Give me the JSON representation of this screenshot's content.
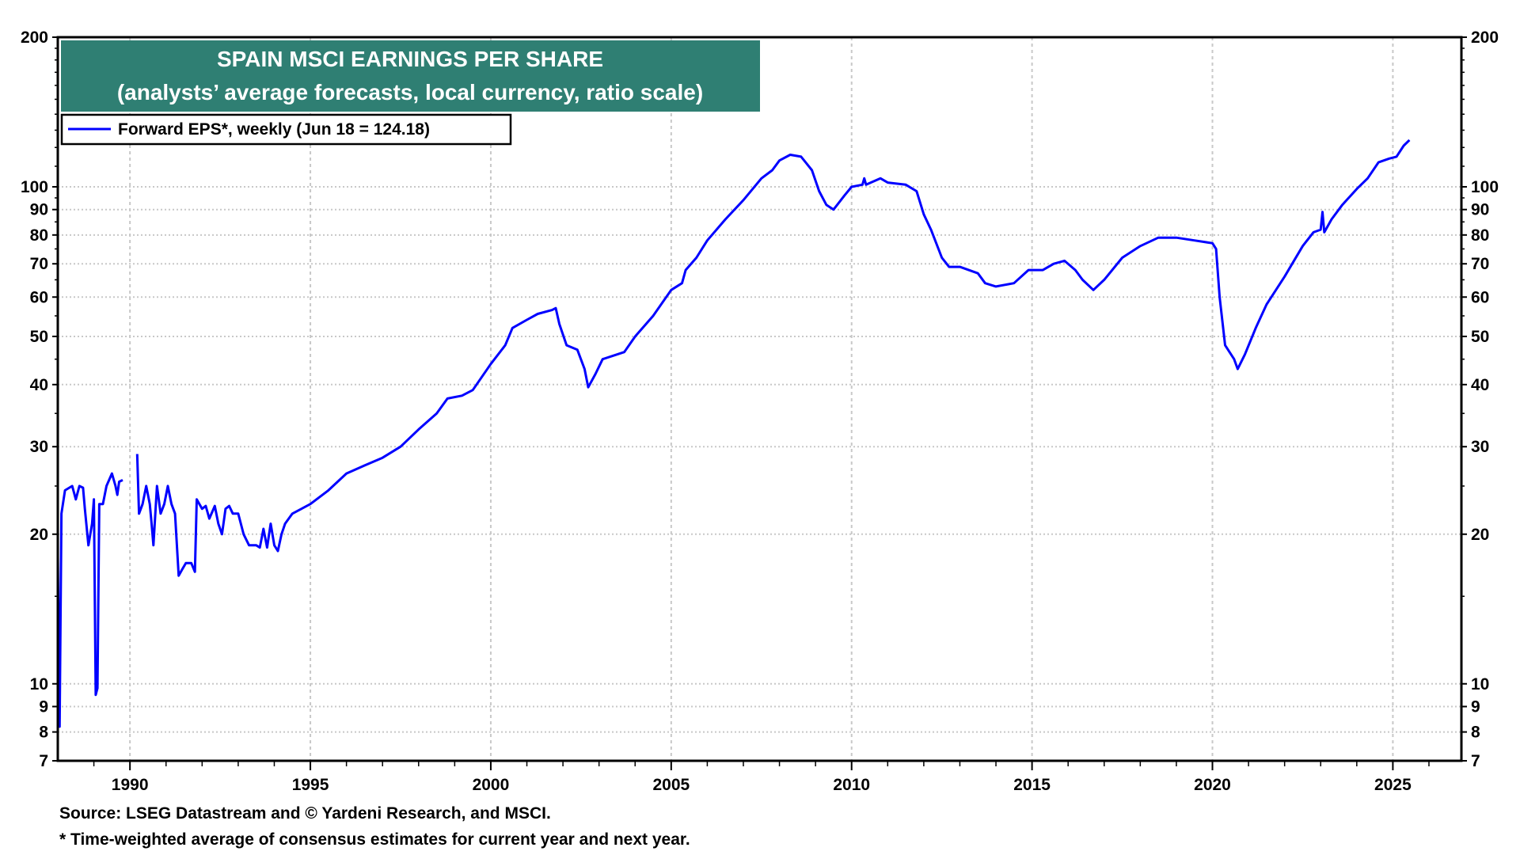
{
  "chart_data": {
    "type": "line",
    "title": "SPAIN MSCI EARNINGS PER SHARE",
    "subtitle": "(analysts’ average forecasts, local currency, ratio scale)",
    "legend": [
      {
        "label": "Forward EPS*, weekly (Jun 18 = 124.18)",
        "color": "#0000ff"
      }
    ],
    "legend_placement": "top-left",
    "yscale": "log",
    "ylim": [
      7,
      200
    ],
    "xlim": [
      1988.0,
      2026.9
    ],
    "yticks": [
      7,
      8,
      9,
      10,
      20,
      30,
      40,
      50,
      60,
      70,
      80,
      90,
      100,
      200
    ],
    "ytick_labels": [
      "7",
      "8",
      "9",
      "10",
      "20",
      "30",
      "40",
      "50",
      "60",
      "70",
      "80",
      "90",
      "100",
      "200"
    ],
    "xticks": [
      1990,
      1995,
      2000,
      2005,
      2010,
      2015,
      2020,
      2025
    ],
    "xtick_labels": [
      "1990",
      "1995",
      "2000",
      "2005",
      "2010",
      "2015",
      "2020",
      "2025"
    ],
    "grid": true,
    "series": [
      {
        "name": "Forward EPS",
        "color": "#0000ff",
        "points": [
          [
            1988.0,
            18
          ],
          [
            1988.05,
            8.2
          ],
          [
            1988.1,
            22
          ],
          [
            1988.2,
            24.5
          ],
          [
            1988.4,
            25
          ],
          [
            1988.5,
            23.5
          ],
          [
            1988.6,
            25
          ],
          [
            1988.7,
            24.8
          ],
          [
            1988.75,
            22.5
          ],
          [
            1988.85,
            19
          ],
          [
            1988.95,
            21
          ],
          [
            1989.0,
            23.5
          ],
          [
            1989.05,
            9.5
          ],
          [
            1989.1,
            9.8
          ],
          [
            1989.15,
            23
          ],
          [
            1989.25,
            23
          ],
          [
            1989.35,
            25
          ],
          [
            1989.5,
            26.5
          ],
          [
            1989.6,
            25
          ],
          [
            1989.65,
            24
          ],
          [
            1989.7,
            25.5
          ],
          [
            1989.8,
            25.7
          ],
          null,
          [
            1990.2,
            29
          ],
          [
            1990.25,
            22
          ],
          [
            1990.35,
            23
          ],
          [
            1990.45,
            25
          ],
          [
            1990.55,
            23
          ],
          [
            1990.6,
            21
          ],
          [
            1990.65,
            19
          ],
          [
            1990.75,
            25
          ],
          [
            1990.85,
            22
          ],
          [
            1990.95,
            23
          ],
          [
            1991.05,
            25
          ],
          [
            1991.15,
            23
          ],
          [
            1991.25,
            22
          ],
          [
            1991.35,
            16.5
          ],
          [
            1991.45,
            17
          ],
          [
            1991.55,
            17.5
          ],
          [
            1991.7,
            17.5
          ],
          [
            1991.8,
            16.8
          ],
          [
            1991.85,
            23.5
          ],
          [
            1992.0,
            22.5
          ],
          [
            1992.1,
            22.8
          ],
          [
            1992.2,
            21.5
          ],
          [
            1992.35,
            22.8
          ],
          [
            1992.45,
            21
          ],
          [
            1992.55,
            20
          ],
          [
            1992.65,
            22.5
          ],
          [
            1992.75,
            22.8
          ],
          [
            1992.85,
            22
          ],
          [
            1993.0,
            22
          ],
          [
            1993.15,
            20
          ],
          [
            1993.3,
            19
          ],
          [
            1993.5,
            19
          ],
          [
            1993.6,
            18.8
          ],
          [
            1993.7,
            20.5
          ],
          [
            1993.8,
            18.8
          ],
          [
            1993.9,
            21
          ],
          [
            1994.0,
            19
          ],
          [
            1994.1,
            18.5
          ],
          [
            1994.2,
            20
          ],
          [
            1994.3,
            21
          ],
          [
            1994.5,
            22
          ],
          [
            1995.0,
            23
          ],
          [
            1995.5,
            24.5
          ],
          [
            1996.0,
            26.5
          ],
          [
            1996.5,
            27.5
          ],
          [
            1997.0,
            28.5
          ],
          [
            1997.5,
            30
          ],
          [
            1998.0,
            32.5
          ],
          [
            1998.5,
            35
          ],
          [
            1998.8,
            37.5
          ],
          [
            1999.2,
            38
          ],
          [
            1999.5,
            39
          ],
          [
            2000.0,
            44
          ],
          [
            2000.4,
            48
          ],
          [
            2000.6,
            52
          ],
          [
            2001.0,
            54
          ],
          [
            2001.3,
            55.5
          ],
          [
            2001.7,
            56.5
          ],
          [
            2001.8,
            57
          ],
          [
            2001.9,
            53
          ],
          [
            2002.1,
            48
          ],
          [
            2002.4,
            47
          ],
          [
            2002.6,
            43
          ],
          [
            2002.7,
            39.5
          ],
          [
            2002.9,
            42
          ],
          [
            2003.1,
            45
          ],
          [
            2003.5,
            46
          ],
          [
            2003.7,
            46.5
          ],
          [
            2004.0,
            50
          ],
          [
            2004.5,
            55
          ],
          [
            2005.0,
            62
          ],
          [
            2005.3,
            64
          ],
          [
            2005.4,
            68
          ],
          [
            2005.7,
            72
          ],
          [
            2006.0,
            78
          ],
          [
            2006.5,
            86
          ],
          [
            2007.0,
            94
          ],
          [
            2007.5,
            104
          ],
          [
            2007.8,
            108
          ],
          [
            2008.0,
            113
          ],
          [
            2008.3,
            116
          ],
          [
            2008.6,
            115
          ],
          [
            2008.9,
            108
          ],
          [
            2009.1,
            98
          ],
          [
            2009.3,
            92
          ],
          [
            2009.5,
            90
          ],
          [
            2009.8,
            96
          ],
          [
            2010.0,
            100
          ],
          [
            2010.3,
            101
          ],
          [
            2010.35,
            104
          ],
          [
            2010.4,
            101
          ],
          [
            2010.8,
            104
          ],
          [
            2011.0,
            102
          ],
          [
            2011.5,
            101
          ],
          [
            2011.8,
            98
          ],
          [
            2012.0,
            88
          ],
          [
            2012.2,
            82
          ],
          [
            2012.5,
            72
          ],
          [
            2012.7,
            69
          ],
          [
            2013.0,
            69
          ],
          [
            2013.5,
            67
          ],
          [
            2013.7,
            64
          ],
          [
            2014.0,
            63
          ],
          [
            2014.5,
            64
          ],
          [
            2014.9,
            68
          ],
          [
            2015.3,
            68
          ],
          [
            2015.6,
            70
          ],
          [
            2015.9,
            71
          ],
          [
            2016.2,
            68
          ],
          [
            2016.4,
            65
          ],
          [
            2016.7,
            62
          ],
          [
            2017.0,
            65
          ],
          [
            2017.5,
            72
          ],
          [
            2018.0,
            76
          ],
          [
            2018.5,
            79
          ],
          [
            2019.0,
            79
          ],
          [
            2019.5,
            78
          ],
          [
            2020.0,
            77
          ],
          [
            2020.1,
            75
          ],
          [
            2020.2,
            60
          ],
          [
            2020.35,
            48
          ],
          [
            2020.6,
            45
          ],
          [
            2020.7,
            43
          ],
          [
            2020.9,
            46
          ],
          [
            2021.2,
            52
          ],
          [
            2021.5,
            58
          ],
          [
            2022.0,
            66
          ],
          [
            2022.5,
            76
          ],
          [
            2022.8,
            81
          ],
          [
            2023.0,
            82
          ],
          [
            2023.05,
            89
          ],
          [
            2023.1,
            81
          ],
          [
            2023.3,
            86
          ],
          [
            2023.6,
            92
          ],
          [
            2024.0,
            99
          ],
          [
            2024.3,
            104
          ],
          [
            2024.6,
            112
          ],
          [
            2024.9,
            114
          ],
          [
            2025.1,
            115
          ],
          [
            2025.3,
            121
          ],
          [
            2025.46,
            124.18
          ]
        ]
      }
    ]
  },
  "footer": {
    "source": "Source: LSEG Datastream and © Yardeni Research, and MSCI.",
    "note": "* Time-weighted average of consensus estimates for current year and next year."
  },
  "colors": {
    "title_bg": "#2f7f73",
    "line": "#0000ff"
  }
}
